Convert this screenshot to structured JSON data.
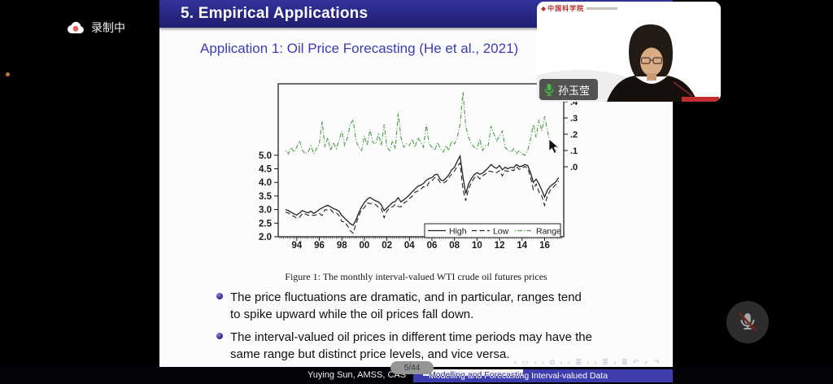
{
  "meeting": {
    "recording_label": "录制中",
    "participant_name": "孙玉莹",
    "cam_logo_text": "中国科学院",
    "mic_button_state": "muted"
  },
  "slide": {
    "title": "5. Empirical Applications",
    "subtitle": "Application 1: Oil Price Forecasting (He et al., 2021)",
    "caption": "Figure 1: The monthly interval-valued WTI crude oil futures prices",
    "bullets": [
      "The price fluctuations are dramatic, and in particular, ranges tend\nto spike upward while the oil prices fall down.",
      "The interval-valued oil prices in different time periods may have the\nsame range but distinct price levels, and vice versa."
    ],
    "nav_symbols": "‹ ▭ ›  ‹ ⧉ ›  ‹ ≣ ›  ‹ ≣ ›  ≣  ↶ ⌕ ↷",
    "footer": {
      "author": "Yuying Sun, AMSS, CAS",
      "deck_title": "Modelling and Forecasting Interval-valued Data",
      "page_indicator": "5/44"
    }
  },
  "colors": {
    "title_bar": "#23237b",
    "accent_blue": "#3b3bb2",
    "range_green": "#4a9e4a",
    "line_black": "#222222",
    "footer_blue": "#3d3dae",
    "record_red": "#e26060",
    "tag_mic_green": "#3fc043",
    "mute_slash_red": "#73261f"
  },
  "chart_data": {
    "type": "line",
    "title": "",
    "xlabel": "",
    "ylabel_left": "",
    "ylabel_right": "",
    "x_start": 1993.0,
    "x_step": 0.25,
    "x_ticks": [
      {
        "label": "94",
        "year": 1994
      },
      {
        "label": "96",
        "year": 1996
      },
      {
        "label": "98",
        "year": 1998
      },
      {
        "label": "00",
        "year": 2000
      },
      {
        "label": "02",
        "year": 2002
      },
      {
        "label": "04",
        "year": 2004
      },
      {
        "label": "06",
        "year": 2006
      },
      {
        "label": "08",
        "year": 2008
      },
      {
        "label": "10",
        "year": 2010
      },
      {
        "label": "12",
        "year": 2012
      },
      {
        "label": "14",
        "year": 2014
      },
      {
        "label": "16",
        "year": 2016
      }
    ],
    "left_axis": {
      "ticks": [
        "2.0",
        "2.5",
        "3.0",
        "3.5",
        "4.0",
        "4.5",
        "5.0"
      ],
      "min": 2.0,
      "max": 5.0
    },
    "right_axis": {
      "ticks": [
        ".0",
        ".1",
        ".2",
        ".3",
        ".4"
      ],
      "min": 0.0,
      "max": 0.4
    },
    "legend": {
      "position": "bottom-right-inside",
      "entries": [
        "High",
        "Low",
        "Range"
      ]
    },
    "series": [
      {
        "name": "High",
        "axis": "left",
        "style": "solid",
        "color": "#222222",
        "values": [
          3.0,
          2.96,
          2.9,
          2.84,
          2.8,
          2.88,
          2.96,
          2.92,
          2.88,
          2.94,
          2.86,
          2.92,
          3.0,
          3.06,
          3.12,
          3.16,
          3.1,
          3.04,
          3.0,
          2.94,
          2.78,
          2.68,
          2.58,
          2.48,
          2.42,
          2.62,
          2.88,
          3.1,
          3.26,
          3.38,
          3.45,
          3.38,
          3.32,
          3.28,
          3.18,
          2.96,
          3.06,
          3.16,
          3.26,
          3.3,
          3.44,
          3.28,
          3.36,
          3.44,
          3.54,
          3.66,
          3.76,
          3.86,
          3.9,
          3.96,
          4.08,
          4.14,
          4.18,
          4.28,
          4.3,
          4.1,
          4.06,
          4.16,
          4.28,
          4.46,
          4.56,
          4.78,
          4.97,
          4.2,
          3.58,
          3.94,
          4.14,
          4.28,
          4.36,
          4.3,
          4.34,
          4.44,
          4.54,
          4.66,
          4.56,
          4.52,
          4.62,
          4.46,
          4.56,
          4.5,
          4.56,
          4.54,
          4.66,
          4.58,
          4.6,
          4.66,
          4.62,
          4.36,
          4.0,
          4.12,
          3.94,
          3.72,
          3.46,
          3.72,
          3.86,
          3.94,
          4.02,
          4.18
        ]
      },
      {
        "name": "Low",
        "axis": "left",
        "style": "dashed",
        "color": "#222222",
        "values": [
          2.9,
          2.88,
          2.78,
          2.75,
          2.68,
          2.72,
          2.86,
          2.84,
          2.79,
          2.81,
          2.78,
          2.81,
          2.86,
          2.78,
          3.0,
          2.98,
          3.0,
          2.89,
          2.89,
          2.78,
          2.56,
          2.55,
          2.4,
          2.22,
          2.13,
          2.46,
          2.76,
          3.0,
          3.07,
          3.25,
          3.22,
          3.23,
          3.18,
          3.08,
          3.05,
          2.7,
          2.94,
          3.06,
          3.1,
          3.19,
          3.11,
          3.1,
          3.24,
          3.3,
          3.41,
          3.49,
          3.64,
          3.68,
          3.75,
          3.84,
          3.82,
          4.0,
          4.06,
          4.18,
          4.15,
          3.99,
          3.97,
          4.03,
          4.18,
          4.3,
          4.42,
          4.6,
          4.71,
          3.74,
          3.33,
          3.76,
          4.0,
          4.16,
          4.25,
          4.13,
          4.24,
          4.31,
          4.41,
          4.41,
          4.36,
          4.36,
          4.43,
          4.24,
          4.44,
          4.4,
          4.47,
          4.43,
          4.58,
          4.48,
          4.52,
          4.59,
          4.52,
          4.19,
          3.74,
          3.94,
          3.65,
          3.5,
          3.15,
          3.5,
          3.71,
          3.82,
          3.92,
          4.05
        ]
      },
      {
        "name": "Range",
        "axis": "right",
        "style": "dashdot",
        "color": "#4a9e4a",
        "values": [
          0.1,
          0.08,
          0.12,
          0.09,
          0.12,
          0.16,
          0.1,
          0.08,
          0.09,
          0.13,
          0.08,
          0.11,
          0.14,
          0.28,
          0.12,
          0.18,
          0.1,
          0.15,
          0.11,
          0.16,
          0.22,
          0.13,
          0.18,
          0.26,
          0.29,
          0.16,
          0.12,
          0.1,
          0.19,
          0.13,
          0.23,
          0.15,
          0.14,
          0.2,
          0.13,
          0.26,
          0.12,
          0.1,
          0.16,
          0.11,
          0.33,
          0.18,
          0.12,
          0.14,
          0.13,
          0.17,
          0.12,
          0.18,
          0.15,
          0.12,
          0.26,
          0.14,
          0.12,
          0.1,
          0.15,
          0.11,
          0.09,
          0.13,
          0.1,
          0.16,
          0.14,
          0.18,
          0.26,
          0.46,
          0.25,
          0.18,
          0.14,
          0.12,
          0.11,
          0.17,
          0.1,
          0.13,
          0.13,
          0.25,
          0.2,
          0.16,
          0.19,
          0.22,
          0.12,
          0.1,
          0.09,
          0.11,
          0.08,
          0.1,
          0.08,
          0.07,
          0.1,
          0.17,
          0.26,
          0.18,
          0.29,
          0.22,
          0.31,
          0.22,
          0.15,
          0.12,
          0.1,
          0.13
        ]
      }
    ]
  }
}
